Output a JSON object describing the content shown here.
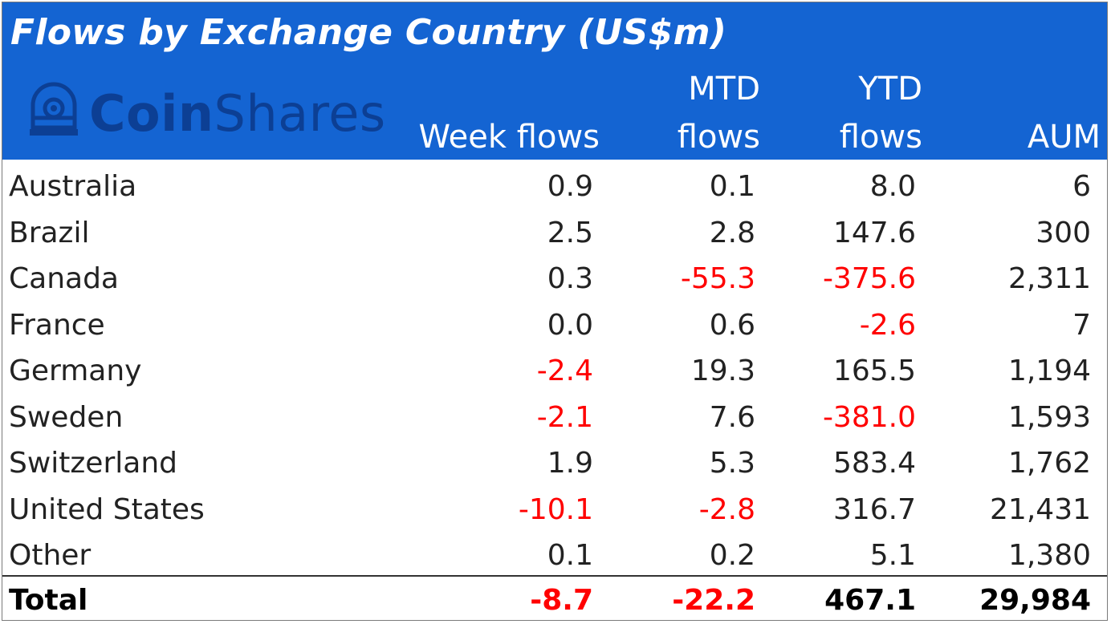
{
  "title": "Flows by Exchange Country (US$m)",
  "logo": {
    "part1": "Coin",
    "part2": "Shares"
  },
  "columns": {
    "week": [
      "",
      "Week flows"
    ],
    "mtd": [
      "MTD",
      "flows"
    ],
    "ytd": [
      "YTD",
      "flows"
    ],
    "aum": [
      "",
      "AUM"
    ]
  },
  "rows": [
    {
      "country": "Australia",
      "week": "0.9",
      "mtd": "0.1",
      "ytd": "8.0",
      "aum": "6"
    },
    {
      "country": "Brazil",
      "week": "2.5",
      "mtd": "2.8",
      "ytd": "147.6",
      "aum": "300"
    },
    {
      "country": "Canada",
      "week": "0.3",
      "mtd": "-55.3",
      "ytd": "-375.6",
      "aum": "2,311"
    },
    {
      "country": "France",
      "week": "0.0",
      "mtd": "0.6",
      "ytd": "-2.6",
      "aum": "7"
    },
    {
      "country": "Germany",
      "week": "-2.4",
      "mtd": "19.3",
      "ytd": "165.5",
      "aum": "1,194"
    },
    {
      "country": "Sweden",
      "week": "-2.1",
      "mtd": "7.6",
      "ytd": "-381.0",
      "aum": "1,593"
    },
    {
      "country": "Switzerland",
      "week": "1.9",
      "mtd": "5.3",
      "ytd": "583.4",
      "aum": "1,762"
    },
    {
      "country": "United States",
      "week": "-10.1",
      "mtd": "-2.8",
      "ytd": "316.7",
      "aum": "21,431"
    },
    {
      "country": "Other",
      "week": "0.1",
      "mtd": "0.2",
      "ytd": "5.1",
      "aum": "1,380"
    }
  ],
  "total": {
    "label": "Total",
    "week": "-8.7",
    "mtd": "-22.2",
    "ytd": "467.1",
    "aum": "29,984"
  },
  "colors": {
    "header_bg": "#1464d2",
    "negative": "#ff0000",
    "logo": "#0c3f94"
  },
  "chart_data": {
    "type": "table",
    "title": "Flows by Exchange Country (US$m)",
    "columns": [
      "Week flows",
      "MTD flows",
      "YTD flows",
      "AUM"
    ],
    "categories": [
      "Australia",
      "Brazil",
      "Canada",
      "France",
      "Germany",
      "Sweden",
      "Switzerland",
      "United States",
      "Other",
      "Total"
    ],
    "series": [
      {
        "name": "Week flows",
        "values": [
          0.9,
          2.5,
          0.3,
          0.0,
          -2.4,
          -2.1,
          1.9,
          -10.1,
          0.1,
          -8.7
        ]
      },
      {
        "name": "MTD flows",
        "values": [
          0.1,
          2.8,
          -55.3,
          0.6,
          19.3,
          7.6,
          5.3,
          -2.8,
          0.2,
          -22.2
        ]
      },
      {
        "name": "YTD flows",
        "values": [
          8.0,
          147.6,
          -375.6,
          -2.6,
          165.5,
          -381.0,
          583.4,
          316.7,
          5.1,
          467.1
        ]
      },
      {
        "name": "AUM",
        "values": [
          6,
          300,
          2311,
          7,
          1194,
          1593,
          1762,
          21431,
          1380,
          29984
        ]
      }
    ]
  }
}
